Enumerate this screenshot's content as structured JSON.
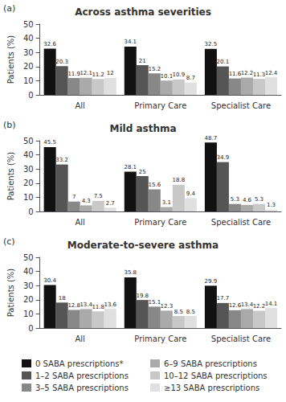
{
  "chart_data": [
    {
      "type": "bar",
      "title": "Across asthma severities",
      "annotations": [
        "(a)"
      ],
      "categories": [
        "All",
        "Primary Care",
        "Specialist Care"
      ],
      "series": [
        {
          "name": "0 SABA prescriptions*",
          "color": "#111111",
          "values": [
            32.6,
            34.1,
            32.5
          ]
        },
        {
          "name": "1–2 SABA prescriptions",
          "color": "#555555",
          "values": [
            20.3,
            21.0,
            20.1
          ]
        },
        {
          "name": "3–5 SABA prescriptions",
          "color": "#888888",
          "values": [
            11.9,
            15.2,
            11.6
          ]
        },
        {
          "name": "6–9 SABA prescriptions",
          "color": "#aaaaaa",
          "values": [
            12.1,
            10.1,
            12.2
          ]
        },
        {
          "name": "10–12 SABA prescriptions",
          "color": "#c8c8c8",
          "values": [
            11.2,
            10.9,
            11.3
          ]
        },
        {
          "name": "≥13 SABA prescriptions",
          "color": "#e0e0e0",
          "values": [
            12.0,
            8.7,
            12.4
          ]
        }
      ],
      "ylabel": "Patients (%)",
      "ylim": [
        0,
        50
      ],
      "yticks": [
        0,
        10,
        20,
        30,
        40,
        50
      ],
      "grid": false,
      "data_labels": true
    },
    {
      "type": "bar",
      "title": "Mild asthma",
      "annotations": [
        "(b)"
      ],
      "categories": [
        "All",
        "Primary Care",
        "Specialist Care"
      ],
      "series": [
        {
          "name": "0 SABA prescriptions*",
          "color": "#111111",
          "values": [
            45.5,
            28.1,
            48.7
          ]
        },
        {
          "name": "1–2 SABA prescriptions",
          "color": "#555555",
          "values": [
            33.2,
            25.0,
            34.9
          ]
        },
        {
          "name": "3–5 SABA prescriptions",
          "color": "#888888",
          "values": [
            7.0,
            15.6,
            5.3
          ]
        },
        {
          "name": "6–9 SABA prescriptions",
          "color": "#aaaaaa",
          "values": [
            4.3,
            3.1,
            4.6
          ]
        },
        {
          "name": "10–12 SABA prescriptions",
          "color": "#c8c8c8",
          "values": [
            7.5,
            18.8,
            5.3
          ]
        },
        {
          "name": "≥13 SABA prescriptions",
          "color": "#e0e0e0",
          "values": [
            2.7,
            9.4,
            1.3
          ]
        }
      ],
      "ylabel": "Patients (%)",
      "ylim": [
        0,
        50
      ],
      "yticks": [
        0,
        10,
        20,
        30,
        40,
        50
      ],
      "grid": false,
      "data_labels": true
    },
    {
      "type": "bar",
      "title": "Moderate-to-severe asthma",
      "annotations": [
        "(c)"
      ],
      "categories": [
        "All",
        "Primary Care",
        "Specialist Care"
      ],
      "series": [
        {
          "name": "0 SABA prescriptions*",
          "color": "#111111",
          "values": [
            30.4,
            35.8,
            29.9
          ]
        },
        {
          "name": "1–2 SABA prescriptions",
          "color": "#555555",
          "values": [
            18.0,
            19.8,
            17.7
          ]
        },
        {
          "name": "3–5 SABA prescriptions",
          "color": "#888888",
          "values": [
            12.8,
            15.1,
            12.6
          ]
        },
        {
          "name": "6–9 SABA prescriptions",
          "color": "#aaaaaa",
          "values": [
            13.4,
            12.3,
            13.4
          ]
        },
        {
          "name": "10–12 SABA prescriptions",
          "color": "#c8c8c8",
          "values": [
            11.8,
            8.5,
            12.2
          ]
        },
        {
          "name": "≥13 SABA prescriptions",
          "color": "#e0e0e0",
          "values": [
            13.6,
            8.5,
            14.1
          ]
        }
      ],
      "ylabel": "Patients (%)",
      "ylim": [
        0,
        50
      ],
      "yticks": [
        0,
        10,
        20,
        30,
        40,
        50
      ],
      "grid": false,
      "data_labels": true,
      "legend": "bottom"
    }
  ]
}
